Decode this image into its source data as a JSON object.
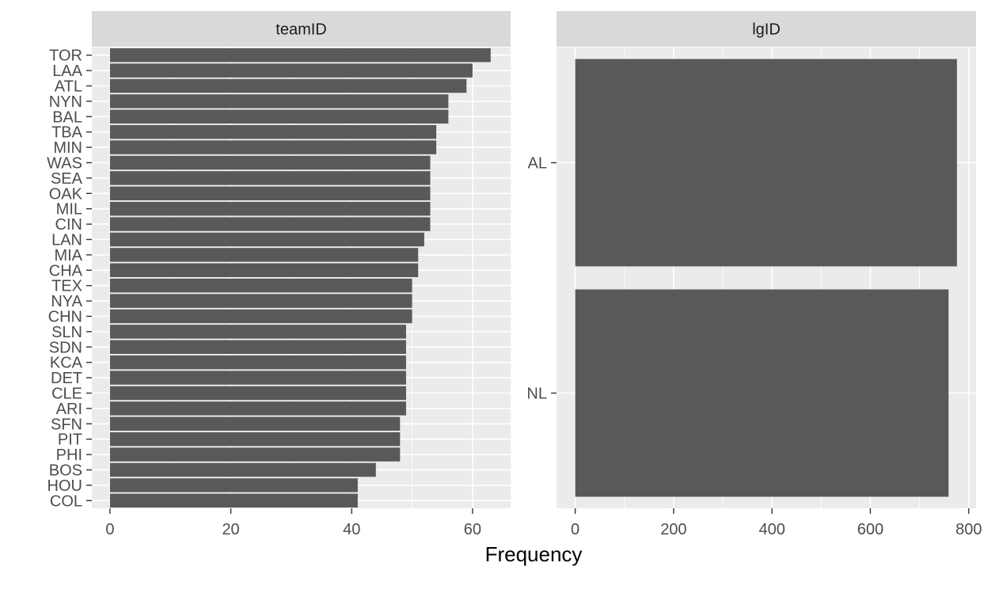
{
  "chart_data": [
    {
      "type": "bar",
      "orientation": "horizontal",
      "title": "teamID",
      "categories": [
        "TOR",
        "LAA",
        "ATL",
        "NYN",
        "BAL",
        "TBA",
        "MIN",
        "WAS",
        "SEA",
        "OAK",
        "MIL",
        "CIN",
        "LAN",
        "MIA",
        "CHA",
        "TEX",
        "NYA",
        "CHN",
        "SLN",
        "SDN",
        "KCA",
        "DET",
        "CLE",
        "ARI",
        "SFN",
        "PIT",
        "PHI",
        "BOS",
        "HOU",
        "COL"
      ],
      "values": [
        63,
        60,
        59,
        56,
        56,
        54,
        54,
        53,
        53,
        53,
        53,
        53,
        52,
        51,
        51,
        50,
        50,
        50,
        49,
        49,
        49,
        49,
        49,
        49,
        48,
        48,
        48,
        44,
        41,
        41
      ],
      "xlim": [
        -3,
        66.3
      ],
      "xticks": [
        0,
        20,
        40,
        60
      ],
      "xlabel": "Frequency",
      "grid": true,
      "bar_color": "#595959",
      "panel_bg": "#EBEBEB",
      "strip_bg": "#D9D9D9"
    },
    {
      "type": "bar",
      "orientation": "horizontal",
      "title": "lgID",
      "categories": [
        "AL",
        "NL"
      ],
      "values": [
        776,
        759
      ],
      "xlim": [
        -38,
        815
      ],
      "xticks": [
        0,
        200,
        400,
        600,
        800
      ],
      "xlabel": "Frequency",
      "grid": true,
      "bar_color": "#595959",
      "panel_bg": "#EBEBEB",
      "strip_bg": "#D9D9D9"
    }
  ],
  "shared_xlabel": "Frequency"
}
